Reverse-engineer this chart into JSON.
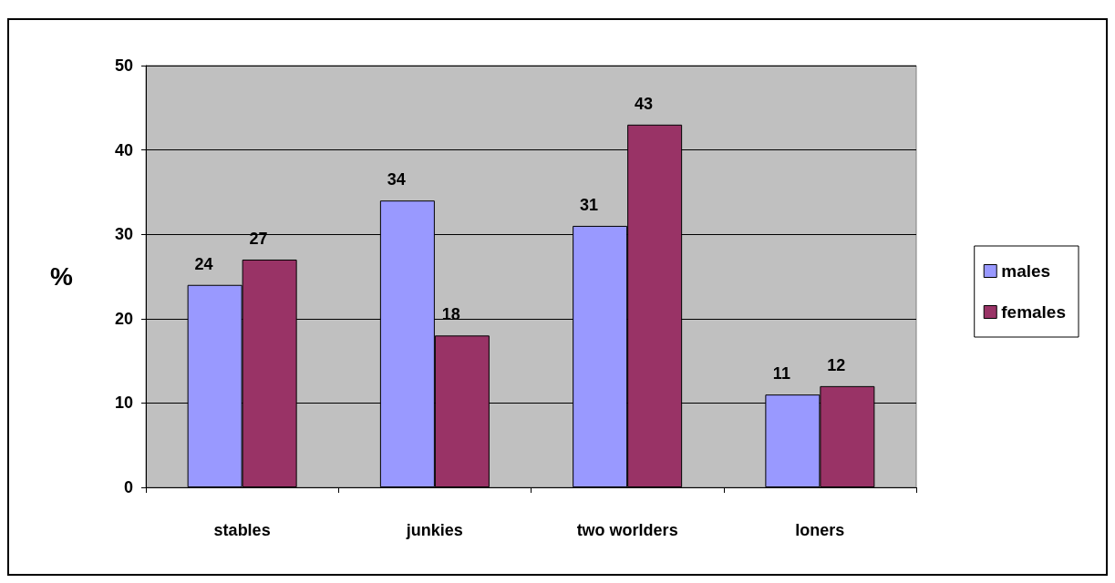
{
  "chart_data": {
    "type": "bar",
    "ylabel": "%",
    "categories": [
      "stables",
      "junkies",
      "two worlders",
      "loners"
    ],
    "series": [
      {
        "name": "males",
        "color": "#9999ff",
        "values": [
          24,
          34,
          31,
          11
        ]
      },
      {
        "name": "females",
        "color": "#993366",
        "values": [
          27,
          18,
          43,
          12
        ]
      }
    ],
    "ylim": [
      0,
      50
    ],
    "yticks": [
      0,
      10,
      20,
      30,
      40,
      50
    ],
    "grid": "y",
    "legend": "right",
    "data_labels": true
  }
}
